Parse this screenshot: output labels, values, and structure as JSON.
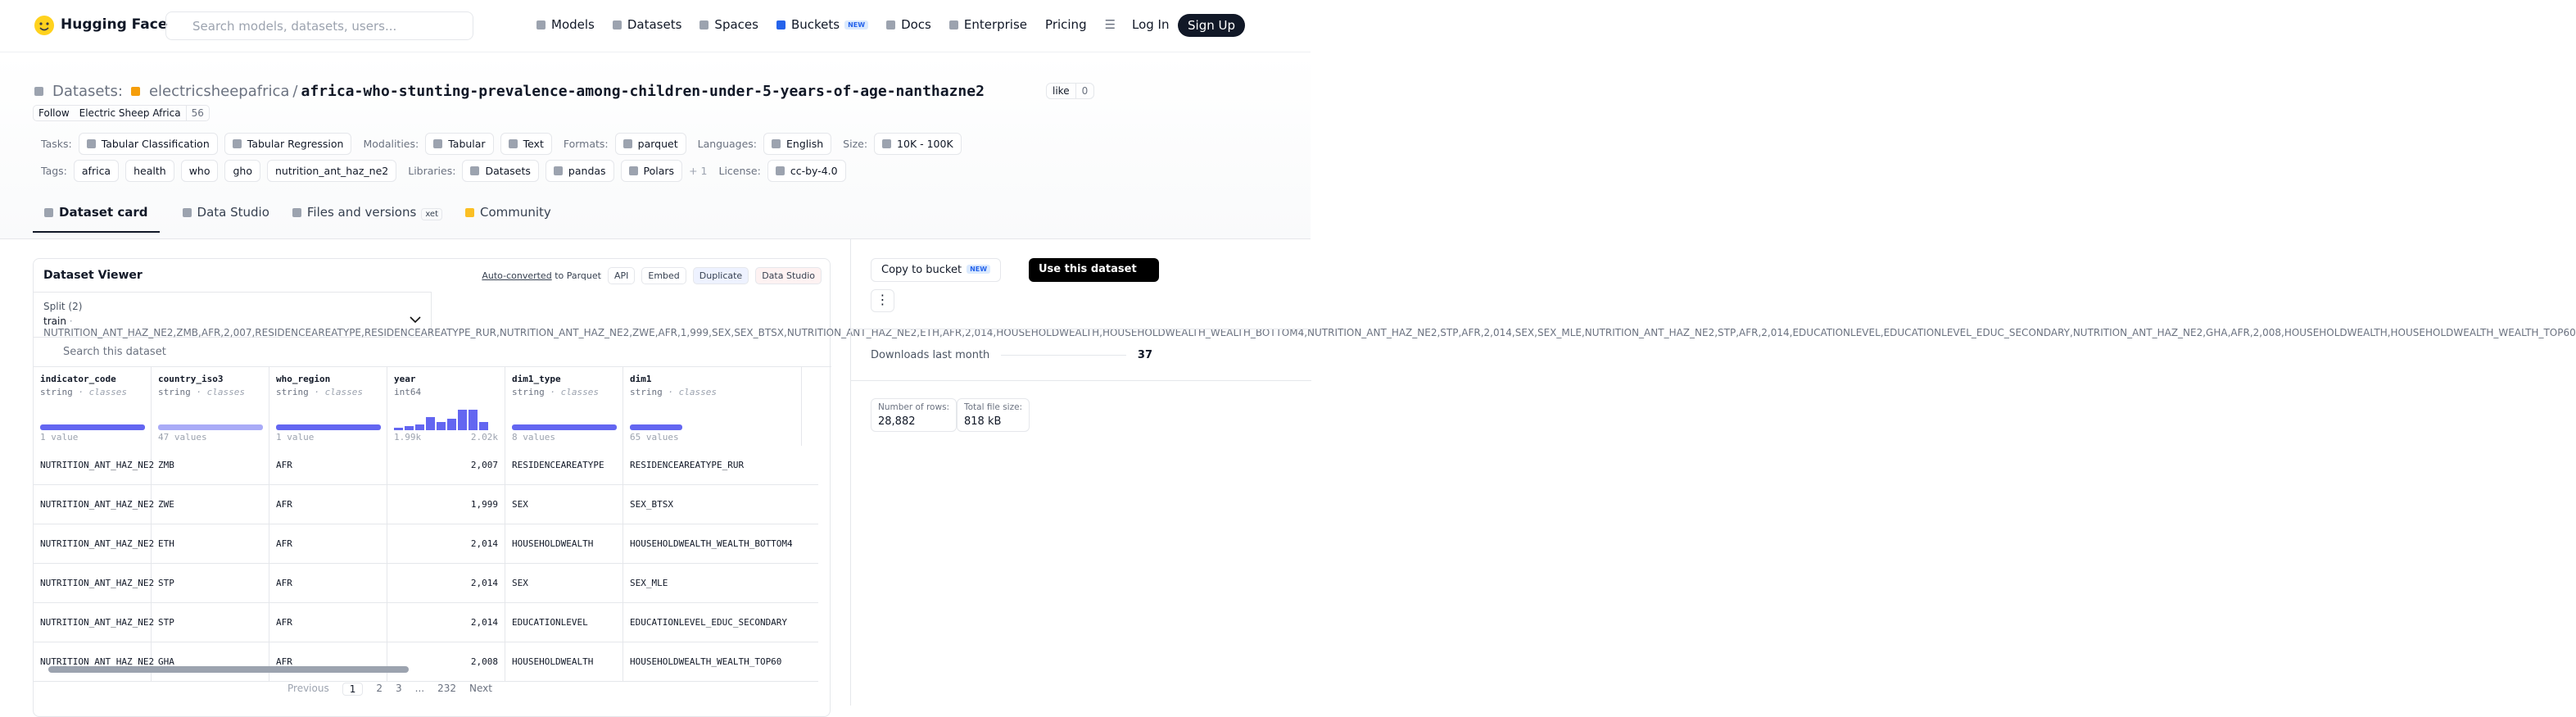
{
  "nav": {
    "brand": "Hugging Face",
    "search": "Search models, datasets, users...",
    "links": [
      "Models",
      "Datasets",
      "Spaces",
      "Buckets",
      "Docs",
      "Enterprise",
      "Pricing"
    ],
    "badge": "NEW",
    "login": "Log In",
    "signup": "Sign Up"
  },
  "header": {
    "section": "Datasets:",
    "owner": "electricsheepafrica",
    "separator": "/",
    "name": "africa-who-stunting-prevalence-among-children-under-5-years-of-age-nanthazne2",
    "like": "like",
    "likes": 0,
    "follow": "Follow",
    "org": "Electric Sheep Africa",
    "followers": 56
  },
  "meta_rows": [
    [
      {
        "label": "Tasks:",
        "items": [
          "Tabular Classification",
          "Tabular Regression"
        ]
      },
      {
        "label": "Modalities:",
        "items": [
          "Tabular",
          "Text"
        ]
      },
      {
        "label": "Formats:",
        "items": [
          "parquet"
        ]
      },
      {
        "label": "Languages:",
        "items": [
          "English"
        ]
      },
      {
        "label": "Size:",
        "items": [
          "10K - 100K"
        ]
      }
    ],
    [
      {
        "label": "Tags:",
        "items": [
          "africa",
          "health",
          "who",
          "gho",
          "nutrition_ant_haz_ne2"
        ]
      },
      {
        "label": "Libraries:",
        "items": [
          "Datasets",
          "pandas",
          "Polars"
        ],
        "more": "+ 1"
      },
      {
        "label": "License:",
        "items": [
          "cc-by-4.0"
        ]
      }
    ]
  ],
  "tabs": {
    "items": [
      "Dataset card",
      "Data Studio",
      "Files and versions",
      "Community"
    ],
    "xet": "xet"
  },
  "viewer": {
    "title": "Dataset Viewer",
    "converted": "Auto-converted",
    "converted_rest": "to Parquet",
    "actions": [
      "API",
      "Embed",
      "Duplicate",
      "Data Studio"
    ],
    "split_label": "Split (2)",
    "split": "train",
    "dot": "·",
    "rows": [
      [
        "NUTRITION_ANT_HAZ_NE2",
        "ZMB",
        "AFR",
        "2,007",
        "RESIDENCEAREATYPE",
        "RESIDENCEAREATYPE_RUR"
      ],
      [
        "NUTRITION_ANT_HAZ_NE2",
        "ZWE",
        "AFR",
        "1,999",
        "SEX",
        "SEX_BTSX"
      ],
      [
        "NUTRITION_ANT_HAZ_NE2",
        "ETH",
        "AFR",
        "2,014",
        "HOUSEHOLDWEALTH",
        "HOUSEHOLDWEALTH_WEALTH_BOTTOM4"
      ],
      [
        "NUTRITION_ANT_HAZ_NE2",
        "STP",
        "AFR",
        "2,014",
        "SEX",
        "SEX_MLE"
      ],
      [
        "NUTRITION_ANT_HAZ_NE2",
        "STP",
        "AFR",
        "2,014",
        "EDUCATIONLEVEL",
        "EDUCATIONLEVEL_EDUC_SECONDARY"
      ],
      [
        "NUTRITION_ANT_HAZ_NE2",
        "GHA",
        "AFR",
        "2,008",
        "HOUSEHOLDWEALTH",
        "HOUSEHOLDWEALTH_WEALTH_TOP60"
      ]
    ],
    "search": "Search this dataset",
    "columns": [
      {
        "name": "indicator_code",
        "type": "string",
        "sep": "·",
        "kind": "classes",
        "stats": [
          "1 value"
        ]
      },
      {
        "name": "country_iso3",
        "type": "string",
        "sep": "·",
        "kind": "classes",
        "stats": [
          "47 values"
        ]
      },
      {
        "name": "who_region",
        "type": "string",
        "sep": "·",
        "kind": "classes",
        "stats": [
          "1 value"
        ]
      },
      {
        "name": "year",
        "type": "int64",
        "stats": [
          "1.99k",
          "2.02k"
        ]
      },
      {
        "name": "dim1_type",
        "type": "string",
        "sep": "·",
        "kind": "classes",
        "stats": [
          "8 values"
        ]
      },
      {
        "name": "dim1",
        "type": "string",
        "sep": "·",
        "kind": "classes",
        "stats": [
          "65 values"
        ]
      }
    ],
    "pagination": {
      "previous": "Previous",
      "pages": [
        "1",
        "2",
        "3",
        "...",
        "232"
      ],
      "next": "Next"
    }
  },
  "sidebar": {
    "copy": "Copy to bucket",
    "copy_badge": "NEW",
    "use": "Use this dataset",
    "downloads_label": "Downloads last month",
    "downloads": 37,
    "rows_label": "Number of rows:",
    "rows": "28,882",
    "size_label": "Total file size:",
    "size": "818 kB"
  }
}
